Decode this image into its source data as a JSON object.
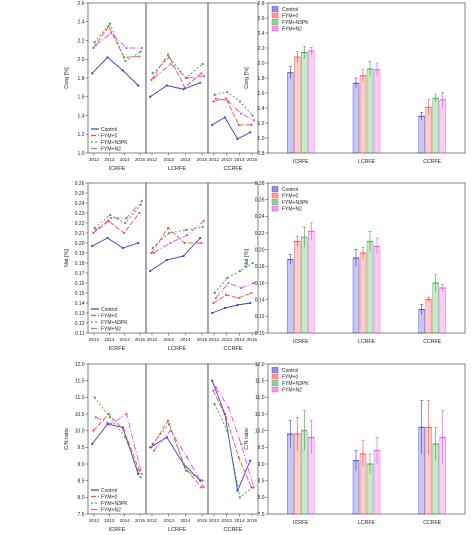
{
  "series_styles": [
    {
      "name": "Control",
      "color": "#3b3bd6"
    },
    {
      "name": "FYM+0",
      "color": "#ff4a4a"
    },
    {
      "name": "FYM+N3PK",
      "color": "#3aa845"
    },
    {
      "name": "FYM+N2",
      "color": "#e04fe0"
    }
  ],
  "chart_data": [
    {
      "type": "line",
      "row": "corg",
      "ylabel": "Corg [%]",
      "ylim": [
        1.0,
        2.6
      ],
      "yticks": [
        "1.0",
        "1.2",
        "1.4",
        "1.6",
        "1.8",
        "2.0",
        "2.2",
        "2.4",
        "2.6"
      ],
      "legend_position": "bottom-left",
      "panels": [
        {
          "label": "ICRFE",
          "x": [
            "2012",
            "2013",
            "2014",
            "2015"
          ],
          "series": [
            {
              "name": "Control",
              "values": [
                1.85,
                2.02,
                1.88,
                1.72
              ]
            },
            {
              "name": "FYM+0",
              "values": [
                2.12,
                2.35,
                2.02,
                2.03
              ]
            },
            {
              "name": "FYM+N3PK",
              "values": [
                2.18,
                2.38,
                1.98,
                2.08
              ]
            },
            {
              "name": "FYM+N2",
              "values": [
                2.15,
                2.28,
                2.12,
                2.12
              ]
            }
          ]
        },
        {
          "label": "LCRFE",
          "x": [
            "2012",
            "2013",
            "2014",
            "2015"
          ],
          "series": [
            {
              "name": "Control",
              "values": [
                1.6,
                1.72,
                1.68,
                1.75
              ]
            },
            {
              "name": "FYM+0",
              "values": [
                1.78,
                2.05,
                1.7,
                1.85
              ]
            },
            {
              "name": "FYM+N3PK",
              "values": [
                1.85,
                2.02,
                1.8,
                1.95
              ]
            },
            {
              "name": "FYM+N2",
              "values": [
                1.8,
                1.95,
                1.8,
                1.82
              ]
            }
          ]
        },
        {
          "label": "CCRFE",
          "x": [
            "2012",
            "2013",
            "2014",
            "2015"
          ],
          "series": [
            {
              "name": "Control",
              "values": [
                1.3,
                1.38,
                1.15,
                1.22
              ]
            },
            {
              "name": "FYM+0",
              "values": [
                1.55,
                1.58,
                1.3,
                1.3
              ]
            },
            {
              "name": "FYM+N3PK",
              "values": [
                1.62,
                1.65,
                1.55,
                1.4
              ]
            },
            {
              "name": "FYM+N2",
              "values": [
                1.58,
                1.55,
                1.42,
                1.35
              ]
            }
          ]
        }
      ]
    },
    {
      "type": "bar",
      "row": "corg",
      "ylabel": "Corg [%]",
      "ylim": [
        0.8,
        2.8
      ],
      "yticks": [
        "0.8",
        "1.0",
        "1.2",
        "1.4",
        "1.6",
        "1.8",
        "2.0",
        "2.2",
        "2.4",
        "2.6",
        "2.8"
      ],
      "legend_position": "top-left",
      "categories": [
        "ICRFE",
        "LCRFE",
        "CCRFE"
      ],
      "series": [
        {
          "name": "Control",
          "values": [
            1.87,
            1.73,
            1.29
          ],
          "errors": [
            0.08,
            0.07,
            0.05
          ]
        },
        {
          "name": "FYM+0",
          "values": [
            2.08,
            1.83,
            1.41
          ],
          "errors": [
            0.07,
            0.08,
            0.1
          ]
        },
        {
          "name": "FYM+N3PK",
          "values": [
            2.14,
            1.92,
            1.53
          ],
          "errors": [
            0.08,
            0.1,
            0.05
          ]
        },
        {
          "name": "FYM+N2",
          "values": [
            2.16,
            1.91,
            1.51
          ],
          "errors": [
            0.05,
            0.09,
            0.1
          ]
        }
      ]
    },
    {
      "type": "line",
      "row": "nat",
      "ylabel": "Nat [%]",
      "ylim": [
        0.11,
        0.26
      ],
      "yticks": [
        "0.11",
        "0.12",
        "0.13",
        "0.14",
        "0.15",
        "0.16",
        "0.17",
        "0.18",
        "0.19",
        "0.20",
        "0.21",
        "0.22",
        "0.23",
        "0.24",
        "0.25",
        "0.26"
      ],
      "legend_position": "bottom-left",
      "panels": [
        {
          "label": "ICRFE",
          "x": [
            "2012",
            "2013",
            "2014",
            "2015"
          ],
          "series": [
            {
              "name": "Control",
              "values": [
                0.197,
                0.205,
                0.195,
                0.2
              ]
            },
            {
              "name": "FYM+0",
              "values": [
                0.21,
                0.222,
                0.21,
                0.23
              ]
            },
            {
              "name": "FYM+N3PK",
              "values": [
                0.215,
                0.228,
                0.22,
                0.238
              ]
            },
            {
              "name": "FYM+N2",
              "values": [
                0.213,
                0.225,
                0.225,
                0.242
              ]
            }
          ]
        },
        {
          "label": "LCRFE",
          "x": [
            "2012",
            "2013",
            "2014",
            "2015"
          ],
          "series": [
            {
              "name": "Control",
              "values": [
                0.172,
                0.183,
                0.187,
                0.205
              ]
            },
            {
              "name": "FYM+0",
              "values": [
                0.19,
                0.215,
                0.2,
                0.2
              ]
            },
            {
              "name": "FYM+N3PK",
              "values": [
                0.195,
                0.21,
                0.213,
                0.216
              ]
            },
            {
              "name": "FYM+N2",
              "values": [
                0.19,
                0.2,
                0.208,
                0.222
              ]
            }
          ]
        },
        {
          "label": "CCRFE",
          "x": [
            "2012",
            "2013",
            "2014",
            "2015"
          ],
          "series": [
            {
              "name": "Control",
              "values": [
                0.13,
                0.135,
                0.138,
                0.14
              ]
            },
            {
              "name": "FYM+0",
              "values": [
                0.14,
                0.148,
                0.145,
                0.15
              ]
            },
            {
              "name": "FYM+N3PK",
              "values": [
                0.15,
                0.165,
                0.172,
                0.18
              ]
            },
            {
              "name": "FYM+N2",
              "values": [
                0.145,
                0.16,
                0.155,
                0.16
              ]
            }
          ]
        }
      ]
    },
    {
      "type": "bar",
      "row": "nat",
      "ylabel": "Nat [%]",
      "ylim": [
        0.1,
        0.28
      ],
      "yticks": [
        "0.10",
        "0.12",
        "0.14",
        "0.16",
        "0.18",
        "0.20",
        "0.22",
        "0.24",
        "0.26",
        "0.28"
      ],
      "legend_position": "top-left",
      "categories": [
        "ICRFE",
        "LCRFE",
        "CCRFE"
      ],
      "series": [
        {
          "name": "Control",
          "values": [
            0.188,
            0.19,
            0.128
          ],
          "errors": [
            0.006,
            0.01,
            0.006
          ]
        },
        {
          "name": "FYM+0",
          "values": [
            0.21,
            0.196,
            0.14
          ],
          "errors": [
            0.006,
            0.007,
            0.003
          ]
        },
        {
          "name": "FYM+N3PK",
          "values": [
            0.215,
            0.21,
            0.16
          ],
          "errors": [
            0.012,
            0.012,
            0.01
          ]
        },
        {
          "name": "FYM+N2",
          "values": [
            0.222,
            0.204,
            0.154
          ],
          "errors": [
            0.01,
            0.01,
            0.004
          ]
        }
      ]
    },
    {
      "type": "line",
      "row": "cn",
      "ylabel": "C/N ratio",
      "ylim": [
        7.5,
        12.0
      ],
      "yticks": [
        "7.5",
        "8.0",
        "8.5",
        "9.0",
        "9.5",
        "10.0",
        "10.5",
        "11.0",
        "11.5",
        "12.0"
      ],
      "legend_position": "bottom-left",
      "panels": [
        {
          "label": "ICRFE",
          "x": [
            "2012",
            "2013",
            "2014",
            "2015"
          ],
          "series": [
            {
              "name": "Control",
              "values": [
                9.6,
                10.2,
                10.1,
                8.7
              ]
            },
            {
              "name": "FYM+0",
              "values": [
                10.0,
                10.5,
                10.0,
                8.8
              ]
            },
            {
              "name": "FYM+N3PK",
              "values": [
                11.0,
                10.4,
                9.8,
                8.6
              ]
            },
            {
              "name": "FYM+N2",
              "values": [
                10.4,
                10.2,
                10.5,
                8.7
              ]
            }
          ]
        },
        {
          "label": "LCRFE",
          "x": [
            "2012",
            "2013",
            "2014",
            "2015"
          ],
          "series": [
            {
              "name": "Control",
              "values": [
                9.5,
                9.8,
                9.0,
                8.5
              ]
            },
            {
              "name": "FYM+0",
              "values": [
                9.5,
                10.3,
                8.9,
                8.3
              ]
            },
            {
              "name": "FYM+N3PK",
              "values": [
                9.6,
                10.2,
                8.8,
                8.5
              ]
            },
            {
              "name": "FYM+N2",
              "values": [
                9.4,
                10.0,
                9.2,
                8.3
              ]
            }
          ]
        },
        {
          "label": "CCRFE",
          "x": [
            "2012",
            "2013",
            "2014",
            "2015"
          ],
          "series": [
            {
              "name": "Control",
              "values": [
                11.5,
                10.5,
                8.2,
                9.1
              ]
            },
            {
              "name": "FYM+0",
              "values": [
                11.2,
                10.4,
                9.2,
                8.3
              ]
            },
            {
              "name": "FYM+N3PK",
              "values": [
                10.8,
                10.0,
                8.0,
                8.3
              ]
            },
            {
              "name": "FYM+N2",
              "values": [
                11.3,
                10.7,
                9.6,
                8.3
              ]
            }
          ]
        }
      ]
    },
    {
      "type": "bar",
      "row": "cn",
      "ylabel": "C/N ratio",
      "ylim": [
        7.5,
        12.0
      ],
      "yticks": [
        "7.5",
        "8.0",
        "8.5",
        "9.0",
        "9.5",
        "10.0",
        "10.5",
        "11.0",
        "11.5",
        "12.0"
      ],
      "legend_position": "top-left",
      "categories": [
        "ICRFE",
        "LCRFE",
        "CCRFE"
      ],
      "series": [
        {
          "name": "Control",
          "values": [
            9.9,
            9.1,
            10.1
          ],
          "errors": [
            0.4,
            0.3,
            0.8
          ]
        },
        {
          "name": "FYM+0",
          "values": [
            9.9,
            9.3,
            10.1
          ],
          "errors": [
            0.5,
            0.4,
            0.8
          ]
        },
        {
          "name": "FYM+N3PK",
          "values": [
            10.0,
            9.0,
            9.6
          ],
          "errors": [
            0.6,
            0.3,
            0.5
          ]
        },
        {
          "name": "FYM+N2",
          "values": [
            9.8,
            9.4,
            9.8
          ],
          "errors": [
            0.5,
            0.4,
            0.8
          ]
        }
      ]
    }
  ]
}
